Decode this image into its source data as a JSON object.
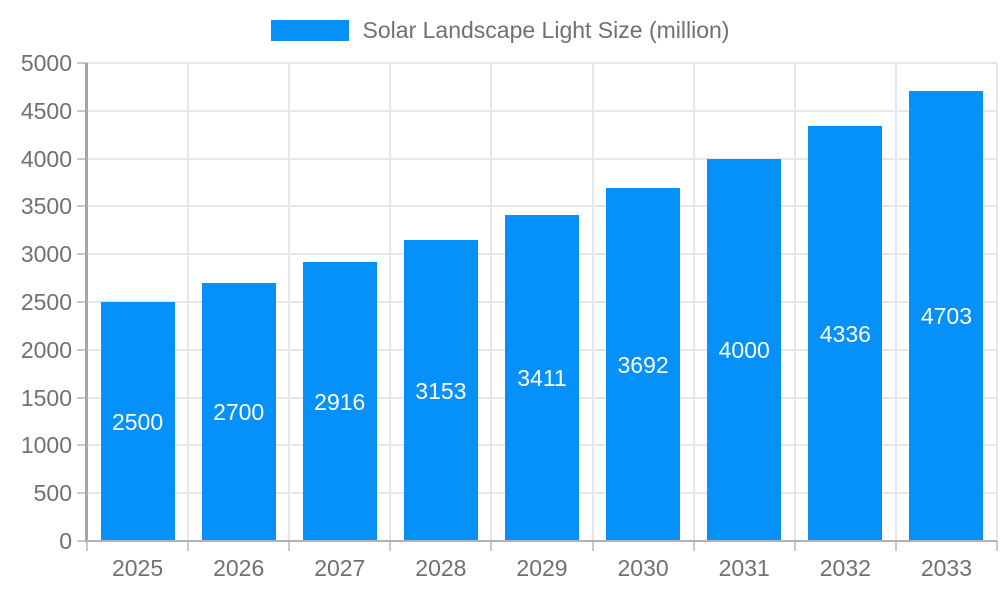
{
  "chart_data": {
    "type": "bar",
    "title": "Solar Landscape Light Size (million)",
    "categories": [
      "2025",
      "2026",
      "2027",
      "2028",
      "2029",
      "2030",
      "2031",
      "2032",
      "2033"
    ],
    "values": [
      2500,
      2700,
      2916,
      3153,
      3411,
      3692,
      4000,
      4336,
      4703
    ],
    "xlabel": "",
    "ylabel": "",
    "ylim": [
      0,
      5000
    ],
    "ytick_interval": 500,
    "ytick_labels": [
      "0",
      "500",
      "1000",
      "1500",
      "2000",
      "2500",
      "3000",
      "3500",
      "4000",
      "4500",
      "5000"
    ],
    "grid": true,
    "legend_position": "top-center",
    "value_label_position": "inside-center",
    "colors": {
      "bar": "#0590fa",
      "grid": "#e7e7e7",
      "axis_y": "#a5a5a5",
      "axis_x": "#b2b2b2",
      "tick": "#c9c9c9",
      "label": "#707070",
      "value_label": "#ffffff",
      "background": "#ffffff"
    }
  }
}
